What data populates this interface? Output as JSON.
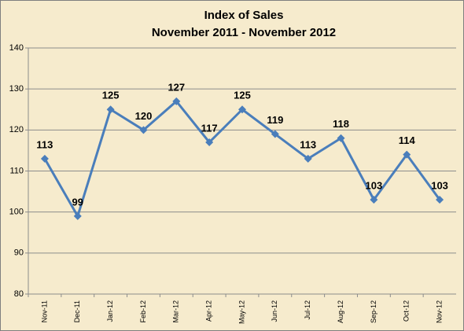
{
  "chart_data": {
    "type": "line",
    "title": "Index of Sales",
    "subtitle": "November 2011 - November 2012",
    "categories": [
      "Nov-11",
      "Dec-11",
      "Jan-12",
      "Feb-12",
      "Mar-12",
      "Apr-12",
      "May-12",
      "Jun-12",
      "Jul-12",
      "Aug-12",
      "Sep-12",
      "Oct-12",
      "Nov-12"
    ],
    "values": [
      113,
      99,
      125,
      120,
      127,
      117,
      125,
      119,
      113,
      118,
      103,
      114,
      103
    ],
    "color": "#4a7ebb",
    "ylim": [
      80,
      140
    ],
    "yticks": [
      80,
      90,
      100,
      110,
      120,
      130,
      140
    ],
    "grid": true
  }
}
